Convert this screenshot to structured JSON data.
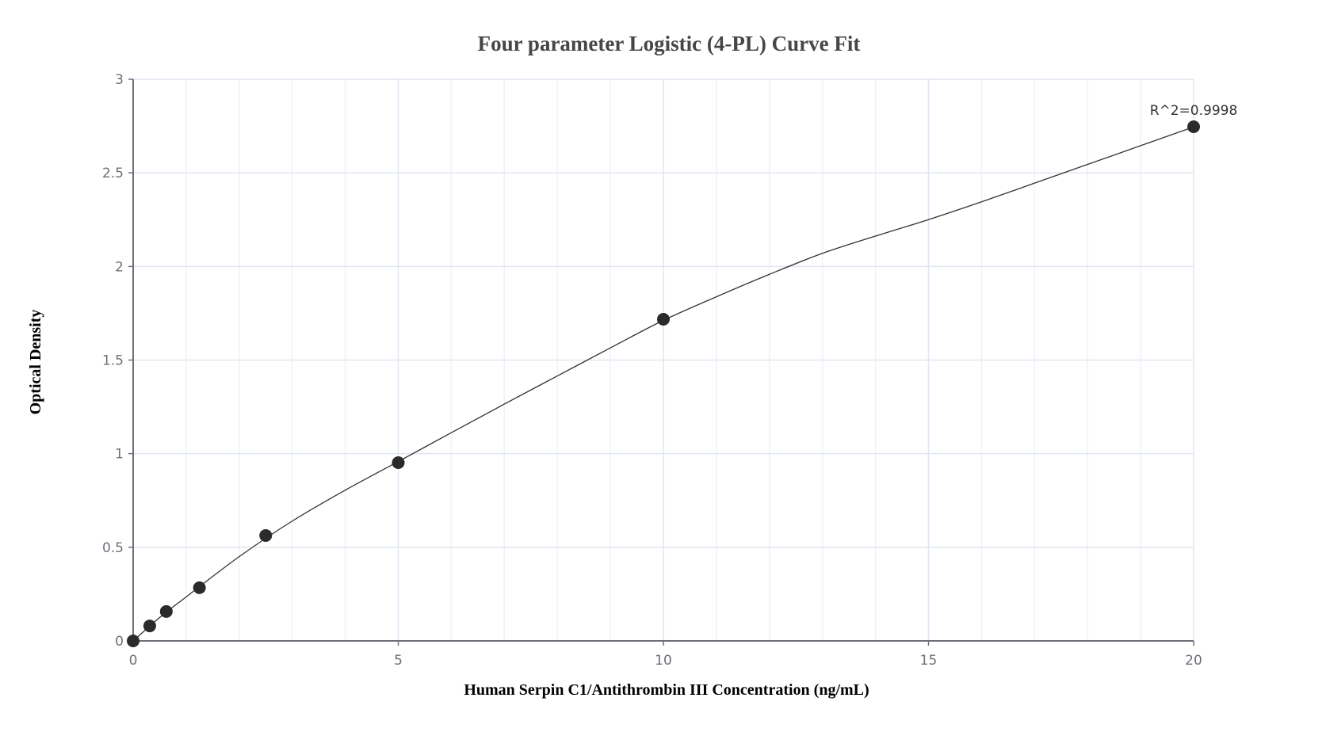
{
  "chart_data": {
    "type": "scatter",
    "title": "Four parameter Logistic (4-PL) Curve Fit",
    "xlabel": "Human Serpin C1/Antithrombin III Concentration (ng/mL)",
    "ylabel": "Optical Density",
    "xlim": [
      0,
      20
    ],
    "ylim": [
      0,
      3
    ],
    "x_ticks": [
      0,
      5,
      10,
      15,
      20
    ],
    "x_tick_labels": [
      "0",
      "5",
      "10",
      "15",
      "20"
    ],
    "y_ticks": [
      0,
      0.5,
      1,
      1.5,
      2,
      2.5,
      3
    ],
    "y_tick_labels": [
      "0",
      "0.5",
      "1",
      "1.5",
      "2",
      "2.5",
      "3"
    ],
    "grid": true,
    "minor_x_grid_step": 1,
    "legend": "none",
    "series": [
      {
        "name": "Standard points",
        "type": "scatter",
        "x": [
          0,
          0.3125,
          0.625,
          1.25,
          2.5,
          5,
          10,
          20
        ],
        "y": [
          0.0,
          0.08,
          0.157,
          0.284,
          0.563,
          0.952,
          1.718,
          2.746
        ]
      },
      {
        "name": "4-PL fit",
        "type": "line",
        "x": [
          0,
          0.5,
          1,
          2,
          3,
          4,
          5,
          6,
          7,
          8,
          9,
          10,
          11,
          12,
          13,
          14,
          15,
          16,
          17,
          18,
          19,
          20
        ],
        "y": [
          0,
          0.125,
          0.235,
          0.45,
          0.64,
          0.805,
          0.958,
          1.112,
          1.265,
          1.415,
          1.565,
          1.712,
          1.838,
          1.958,
          2.07,
          2.162,
          2.25,
          2.345,
          2.445,
          2.545,
          2.645,
          2.745
        ]
      }
    ],
    "annotations": [
      {
        "text": "R^2=0.9998",
        "x": 20,
        "y": 2.746
      }
    ]
  },
  "colors": {
    "title": "#464646",
    "axis": "#6e7079",
    "grid_major": "#e0e6f1",
    "grid_minor": "#f0f2f8",
    "point": "#2b2b2b",
    "line": "#333333"
  }
}
